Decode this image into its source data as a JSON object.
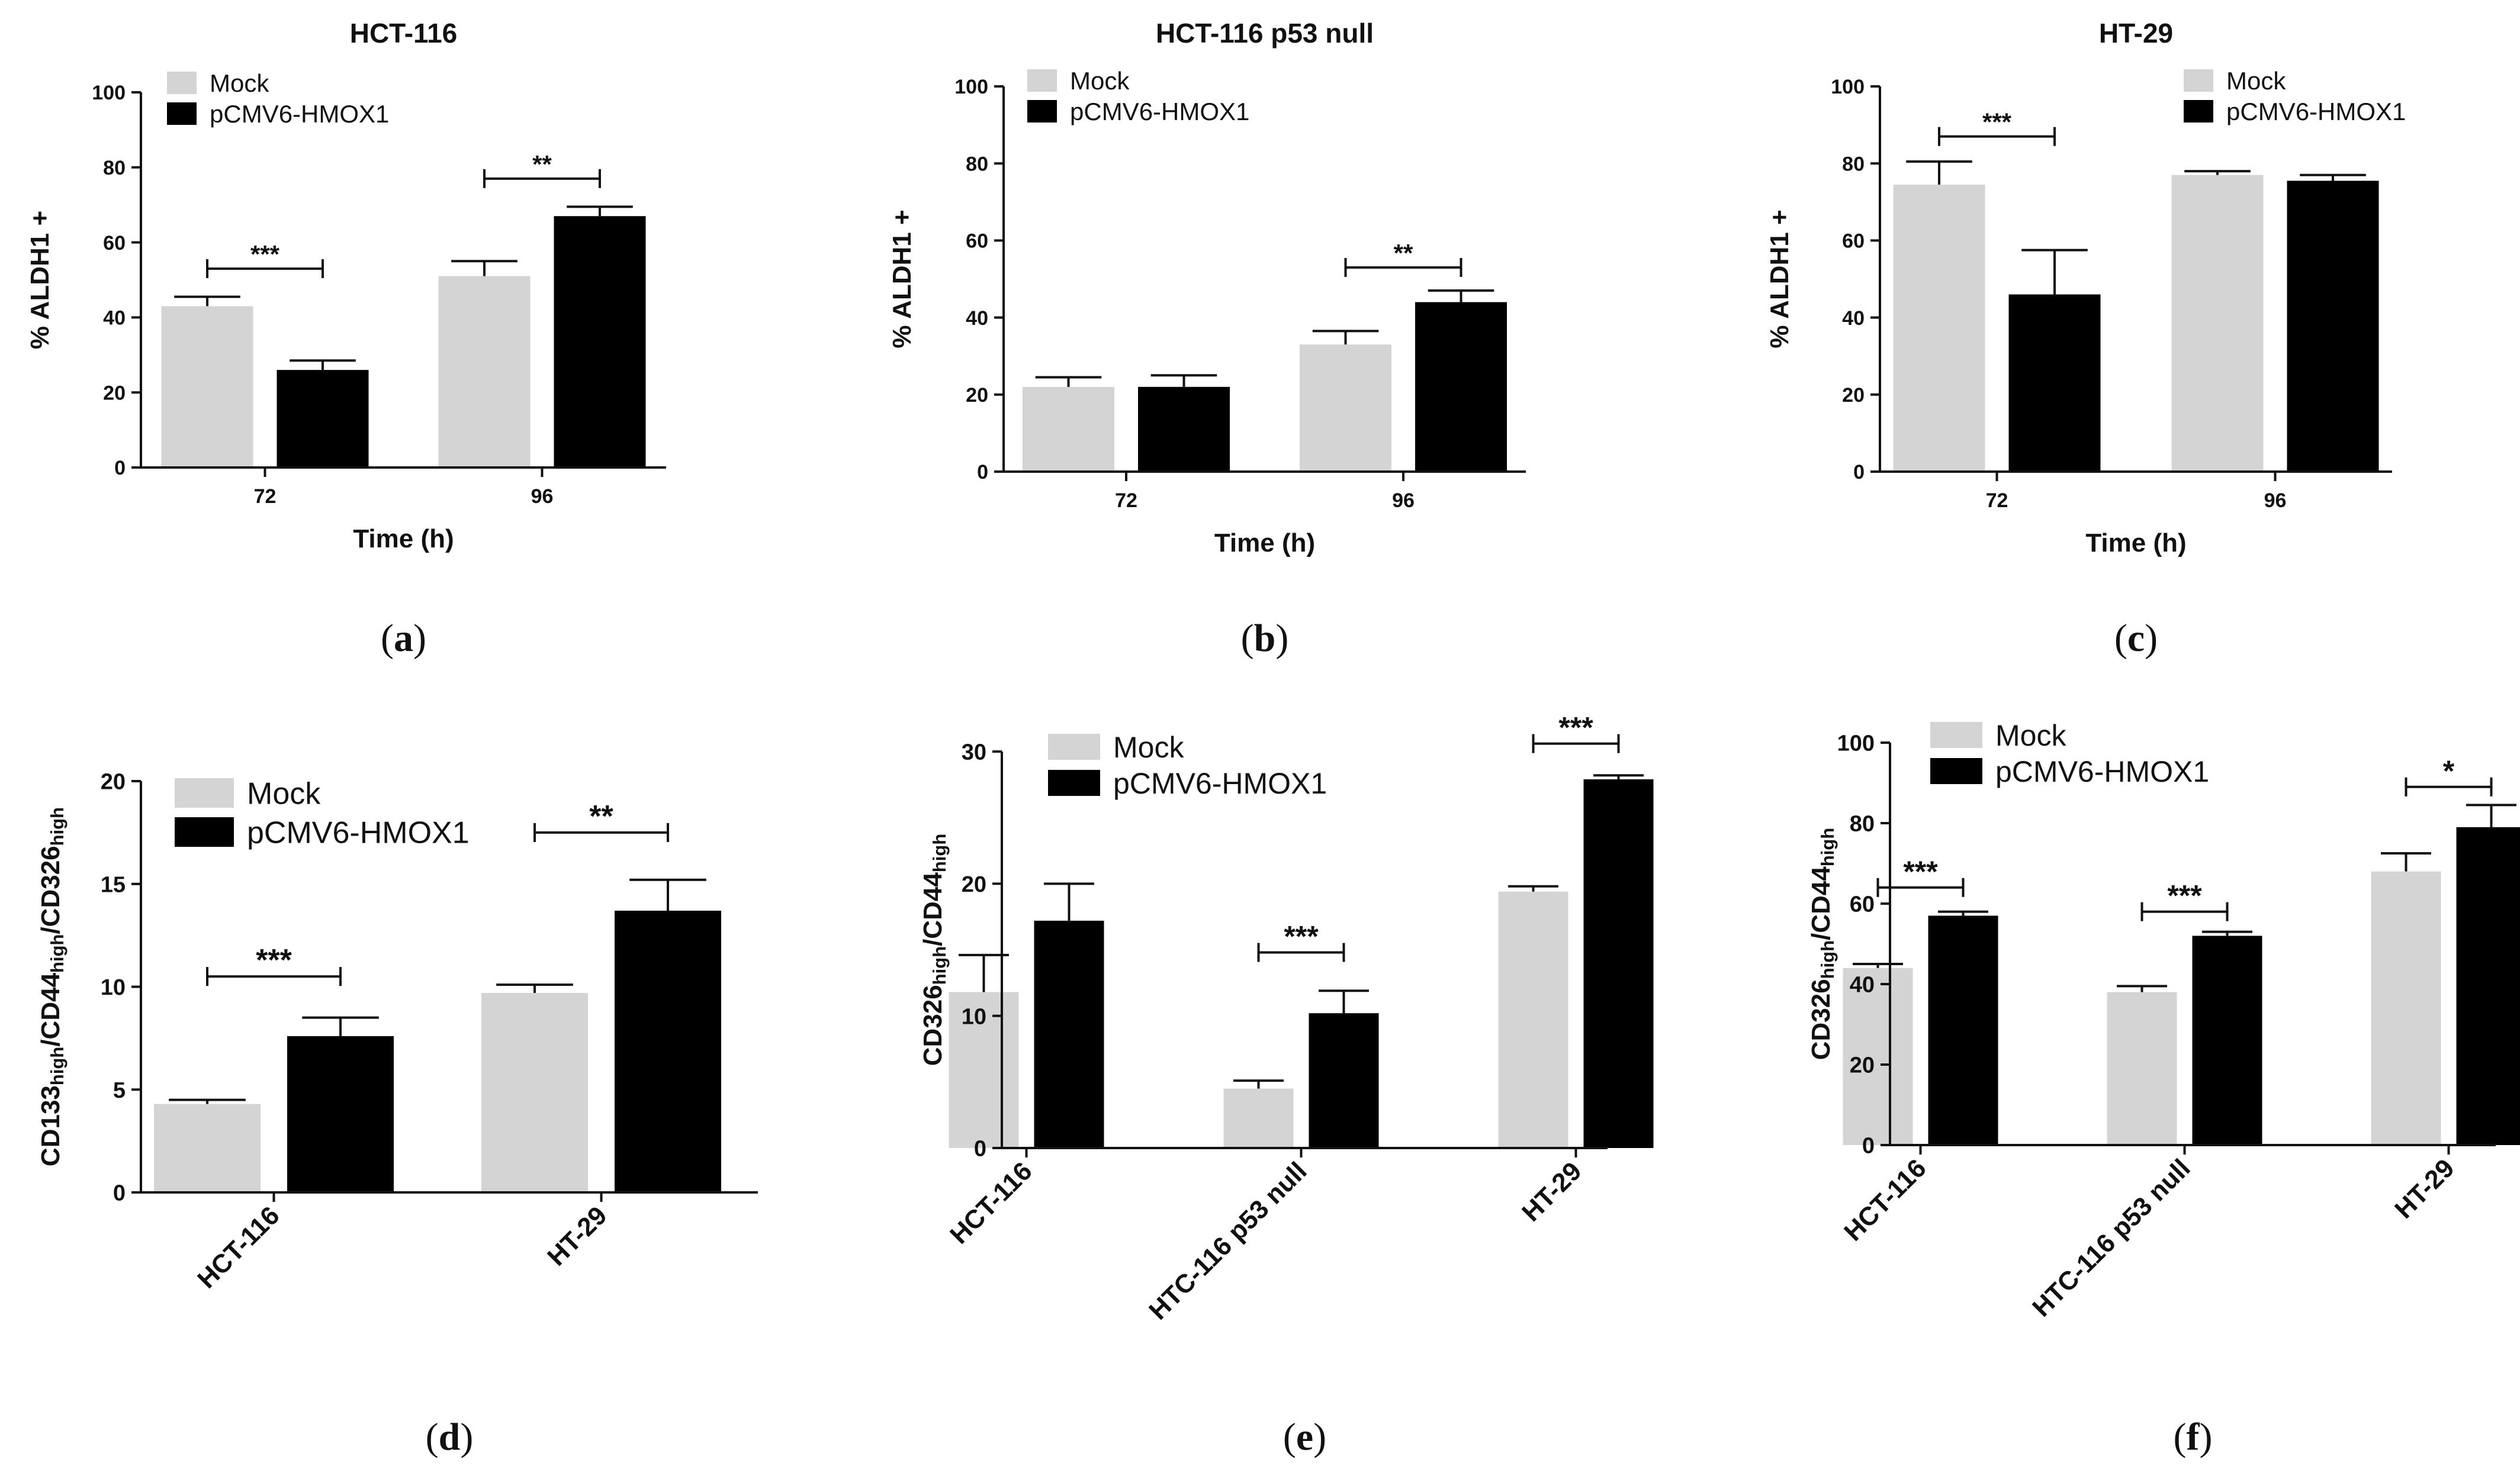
{
  "colors": {
    "mock": "#d4d4d4",
    "hmox1": "#000000",
    "axis": "#111111"
  },
  "chart_data": [
    {
      "type": "bar",
      "panel": "a",
      "caption": "(a)",
      "title": "HCT-116",
      "xlabel": "Time (h)",
      "ylabel": "% ALDH1 +",
      "categories": [
        "72",
        "96"
      ],
      "ylim": [
        0,
        100
      ],
      "yticks": [
        0,
        20,
        40,
        60,
        80,
        100
      ],
      "tick_labels": [
        "0",
        "20",
        "40",
        "60",
        "80",
        "100"
      ],
      "series": [
        {
          "name": "Mock",
          "values": [
            43,
            51
          ],
          "errors": [
            2.5,
            4
          ]
        },
        {
          "name": "pCMV6-HMOX1",
          "values": [
            26,
            67
          ],
          "errors": [
            2.5,
            2.5
          ]
        }
      ],
      "annotations": [
        {
          "category": 0,
          "text": "***",
          "y": 53
        },
        {
          "category": 1,
          "text": "**",
          "y": 77
        }
      ],
      "legend": "top-left"
    },
    {
      "type": "bar",
      "panel": "b",
      "caption": "(b)",
      "title": "HCT-116 p53 null",
      "xlabel": "Time (h)",
      "ylabel": "% ALDH1 +",
      "categories": [
        "72",
        "96"
      ],
      "ylim": [
        0,
        100
      ],
      "yticks": [
        0,
        20,
        40,
        60,
        80,
        100
      ],
      "tick_labels": [
        "0",
        "20",
        "40",
        "60",
        "80",
        "100"
      ],
      "series": [
        {
          "name": "Mock",
          "values": [
            22,
            33
          ],
          "errors": [
            2.5,
            3.5
          ]
        },
        {
          "name": "pCMV6-HMOX1",
          "values": [
            22,
            44
          ],
          "errors": [
            3,
            3
          ]
        }
      ],
      "annotations": [
        {
          "category": 1,
          "text": "**",
          "y": 53
        }
      ],
      "legend": "top-left"
    },
    {
      "type": "bar",
      "panel": "c",
      "caption": "(c)",
      "title": "HT-29",
      "xlabel": "Time (h)",
      "ylabel": "% ALDH1 +",
      "categories": [
        "72",
        "96"
      ],
      "ylim": [
        0,
        100
      ],
      "yticks": [
        0,
        20,
        40,
        60,
        80,
        100
      ],
      "tick_labels": [
        "0",
        "20",
        "40",
        "60",
        "80",
        "100"
      ],
      "series": [
        {
          "name": "Mock",
          "values": [
            74.5,
            77
          ],
          "errors": [
            6,
            1
          ]
        },
        {
          "name": "pCMV6-HMOX1",
          "values": [
            46,
            75.5
          ],
          "errors": [
            11.5,
            1.5
          ]
        }
      ],
      "annotations": [
        {
          "category": 0,
          "text": "***",
          "y": 87
        }
      ],
      "legend": "top-right"
    },
    {
      "type": "bar",
      "panel": "d",
      "caption": "(d)",
      "title": "",
      "xlabel": "",
      "ylabel": {
        "parts": [
          [
            "CD133",
            ""
          ],
          [
            "high",
            "sub"
          ],
          [
            "/CD44",
            ""
          ],
          [
            "high",
            "sub"
          ],
          [
            "/CD326",
            ""
          ],
          [
            "high",
            "sub"
          ]
        ]
      },
      "categories": [
        "HCT-116",
        "HT-29"
      ],
      "ylim": [
        0,
        20
      ],
      "yticks": [
        0,
        5,
        10,
        15,
        20
      ],
      "tick_labels": [
        "0",
        "5",
        "10",
        "15",
        "20"
      ],
      "series": [
        {
          "name": "Mock",
          "values": [
            4.3,
            9.7
          ],
          "errors": [
            0.2,
            0.4
          ]
        },
        {
          "name": "pCMV6-HMOX1",
          "values": [
            7.6,
            13.7
          ],
          "errors": [
            0.9,
            1.5
          ]
        }
      ],
      "annotations": [
        {
          "category": 0,
          "text": "***",
          "y": 10.5
        },
        {
          "category": 1,
          "text": "**",
          "y": 17.5
        }
      ],
      "legend": "top-left"
    },
    {
      "type": "bar",
      "panel": "e",
      "caption": "(e)",
      "title": "",
      "xlabel": "",
      "ylabel": {
        "parts": [
          [
            "CD326",
            ""
          ],
          [
            "high",
            "sub"
          ],
          [
            "/CD44",
            ""
          ],
          [
            "high",
            "sub"
          ]
        ]
      },
      "categories": [
        "HCT-116",
        "HTC-116 p53 null",
        "HT-29"
      ],
      "ylim": [
        0,
        30
      ],
      "yticks": [
        0,
        10,
        20,
        30
      ],
      "tick_labels": [
        "0",
        "10",
        "20",
        "30"
      ],
      "series": [
        {
          "name": "Mock",
          "values": [
            11.8,
            4.5,
            19.4
          ],
          "errors": [
            2.8,
            0.6,
            0.4
          ]
        },
        {
          "name": "pCMV6-HMOX1",
          "values": [
            17.2,
            10.2,
            27.9
          ],
          "errors": [
            2.8,
            1.7,
            0.3
          ]
        }
      ],
      "annotations": [
        {
          "category": 1,
          "text": "***",
          "y": 14.8
        },
        {
          "category": 2,
          "text": "***",
          "y": 30.6
        }
      ],
      "legend": "top-left"
    },
    {
      "type": "bar",
      "panel": "f",
      "caption": "(f)",
      "title": "",
      "xlabel": "",
      "ylabel": {
        "parts": [
          [
            "CD326",
            ""
          ],
          [
            "high",
            "sub"
          ],
          [
            "/CD44",
            ""
          ],
          [
            "high",
            "sub"
          ]
        ]
      },
      "categories": [
        "HCT-116",
        "HTC-116 p53 null",
        "HT-29"
      ],
      "ylim": [
        0,
        100
      ],
      "yticks": [
        0,
        20,
        40,
        60,
        80,
        100
      ],
      "tick_labels": [
        "0",
        "20",
        "40",
        "60",
        "80",
        "100"
      ],
      "series": [
        {
          "name": "Mock",
          "values": [
            44,
            38,
            68
          ],
          "errors": [
            1,
            1.5,
            4.5
          ]
        },
        {
          "name": "pCMV6-HMOX1",
          "values": [
            57,
            52,
            79
          ],
          "errors": [
            1,
            1,
            5.5
          ]
        }
      ],
      "annotations": [
        {
          "category": 0,
          "text": "***",
          "y": 64
        },
        {
          "category": 1,
          "text": "***",
          "y": 58
        },
        {
          "category": 2,
          "text": "*",
          "y": 89
        }
      ],
      "legend": "top-left"
    }
  ]
}
